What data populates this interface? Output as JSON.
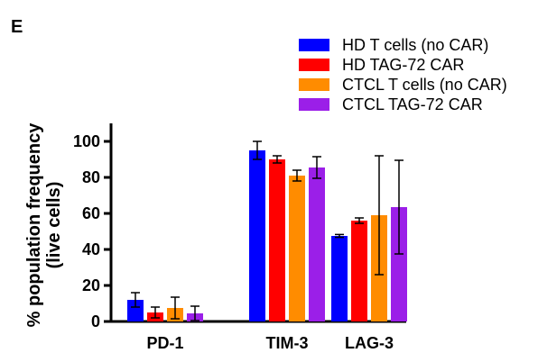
{
  "panel_label": "E",
  "chart_data": {
    "type": "bar",
    "categories": [
      "PD-1",
      "TIM-3",
      "LAG-3"
    ],
    "ylabel_line1": "% population frequency",
    "ylabel_line2": "(live cells)",
    "ylim": [
      0,
      110
    ],
    "yticks": [
      0,
      20,
      40,
      60,
      80,
      100
    ],
    "legend_position": "top-right",
    "grid": false,
    "series": [
      {
        "name": "HD T cells (no CAR)",
        "color": "#0000ff",
        "values": [
          12,
          95,
          47.5
        ],
        "errors": [
          4,
          5,
          0.8
        ]
      },
      {
        "name": "HD TAG-72 CAR",
        "color": "#ff0000",
        "values": [
          5,
          90,
          56
        ],
        "errors": [
          3,
          2,
          1.5
        ]
      },
      {
        "name": "CTCL T cells (no CAR)",
        "color": "#ff8c00",
        "values": [
          7.5,
          81,
          59
        ],
        "errors": [
          6,
          3,
          33
        ]
      },
      {
        "name": "CTCL TAG-72 CAR",
        "color": "#9b1fe8",
        "values": [
          4.5,
          85.5,
          63.5
        ],
        "errors": [
          4,
          6,
          26
        ]
      }
    ]
  }
}
